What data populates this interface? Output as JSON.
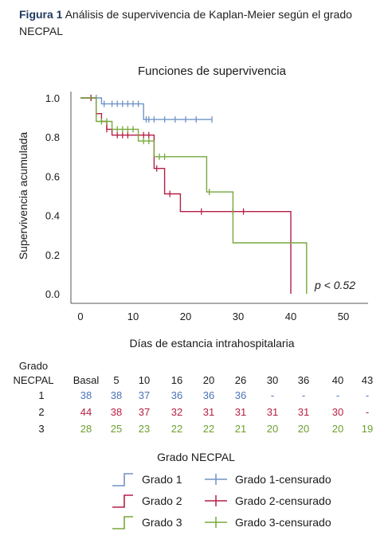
{
  "caption": {
    "label": "Figura 1",
    "text": " Análisis de supervivencia de Kaplan-Meier según el grado NECPAL"
  },
  "chart_data": {
    "type": "line",
    "title": "Funciones de supervivencia",
    "xlabel": "Días de estancia intrahospitalaria",
    "ylabel": "Supervivencia acumulada",
    "xlim": [
      0,
      50
    ],
    "ylim": [
      0,
      1
    ],
    "xticks": [
      "0",
      "10",
      "20",
      "30",
      "40",
      "50"
    ],
    "yticks": [
      "0.0",
      "0.2",
      "0.4",
      "0.6",
      "0.8",
      "1.0"
    ],
    "annotation": "p < 0.52",
    "grid": false,
    "series": [
      {
        "name": "Grado 1",
        "color": "#6f93c7",
        "steps": [
          [
            0,
            1.0
          ],
          [
            4,
            1.0
          ],
          [
            4,
            0.97
          ],
          [
            12,
            0.97
          ],
          [
            12,
            0.89
          ],
          [
            25,
            0.89
          ]
        ],
        "censored": [
          [
            2,
            1.0
          ],
          [
            3,
            1.0
          ],
          [
            4.5,
            0.97
          ],
          [
            6,
            0.97
          ],
          [
            7,
            0.97
          ],
          [
            8,
            0.97
          ],
          [
            9,
            0.97
          ],
          [
            10,
            0.97
          ],
          [
            11,
            0.97
          ],
          [
            12.5,
            0.89
          ],
          [
            13,
            0.89
          ],
          [
            14,
            0.89
          ],
          [
            16,
            0.89
          ],
          [
            18,
            0.89
          ],
          [
            20,
            0.89
          ],
          [
            22,
            0.89
          ],
          [
            25,
            0.89
          ]
        ]
      },
      {
        "name": "Grado 2",
        "color": "#b51f46",
        "steps": [
          [
            0,
            1.0
          ],
          [
            3,
            1.0
          ],
          [
            3,
            0.92
          ],
          [
            4,
            0.92
          ],
          [
            4,
            0.88
          ],
          [
            5,
            0.88
          ],
          [
            5,
            0.84
          ],
          [
            6,
            0.84
          ],
          [
            6,
            0.81
          ],
          [
            11,
            0.81
          ],
          [
            11,
            0.81
          ],
          [
            14,
            0.81
          ],
          [
            14,
            0.64
          ],
          [
            16,
            0.64
          ],
          [
            16,
            0.51
          ],
          [
            19,
            0.51
          ],
          [
            19,
            0.42
          ],
          [
            40,
            0.42
          ],
          [
            40,
            0.0
          ]
        ],
        "censored": [
          [
            2,
            1.0
          ],
          [
            3,
            0.92
          ],
          [
            5,
            0.84
          ],
          [
            7,
            0.81
          ],
          [
            8,
            0.81
          ],
          [
            9,
            0.81
          ],
          [
            12,
            0.81
          ],
          [
            13,
            0.81
          ],
          [
            14.5,
            0.64
          ],
          [
            17,
            0.51
          ],
          [
            23,
            0.42
          ],
          [
            29,
            0.42
          ],
          [
            31,
            0.42
          ]
        ]
      },
      {
        "name": "Grado 3",
        "color": "#76a83b",
        "steps": [
          [
            0,
            1.0
          ],
          [
            3,
            1.0
          ],
          [
            3,
            0.88
          ],
          [
            6,
            0.88
          ],
          [
            6,
            0.84
          ],
          [
            11,
            0.84
          ],
          [
            11,
            0.78
          ],
          [
            14,
            0.78
          ],
          [
            14,
            0.7
          ],
          [
            24,
            0.7
          ],
          [
            24,
            0.52
          ],
          [
            29,
            0.52
          ],
          [
            29,
            0.26
          ],
          [
            43,
            0.26
          ],
          [
            43,
            0.0
          ]
        ],
        "censored": [
          [
            4,
            0.88
          ],
          [
            5,
            0.88
          ],
          [
            7,
            0.84
          ],
          [
            8,
            0.84
          ],
          [
            9,
            0.84
          ],
          [
            10,
            0.84
          ],
          [
            12,
            0.78
          ],
          [
            13,
            0.78
          ],
          [
            15,
            0.7
          ],
          [
            16,
            0.7
          ],
          [
            24.5,
            0.52
          ]
        ]
      }
    ]
  },
  "risk_table": {
    "header_label_line1": "Grado",
    "header_label_line2": "NECPAL",
    "columns": [
      "Basal",
      "5",
      "10",
      "16",
      "20",
      "26",
      "30",
      "36",
      "40",
      "43"
    ],
    "rows": [
      {
        "grade": "1",
        "color": "#4a73b5",
        "values": [
          "38",
          "38",
          "37",
          "36",
          "36",
          "36",
          "-",
          "-",
          "-",
          "-"
        ]
      },
      {
        "grade": "2",
        "color": "#b51f46",
        "values": [
          "44",
          "38",
          "37",
          "32",
          "31",
          "31",
          "31",
          "31",
          "30",
          "-"
        ]
      },
      {
        "grade": "3",
        "color": "#6aa02e",
        "values": [
          "28",
          "25",
          "23",
          "22",
          "22",
          "21",
          "20",
          "20",
          "20",
          "19"
        ]
      }
    ]
  },
  "legend": {
    "title": "Grado NECPAL",
    "items": [
      {
        "label": "Grado 1",
        "color": "#6f93c7"
      },
      {
        "label": "Grado 2",
        "color": "#b51f46"
      },
      {
        "label": "Grado 3",
        "color": "#76a83b"
      }
    ],
    "censored_items": [
      {
        "label": "Grado 1-censurado",
        "color": "#6f93c7"
      },
      {
        "label": "Grado 2-censurado",
        "color": "#b51f46"
      },
      {
        "label": "Grado 3-censurado",
        "color": "#76a83b"
      }
    ]
  }
}
